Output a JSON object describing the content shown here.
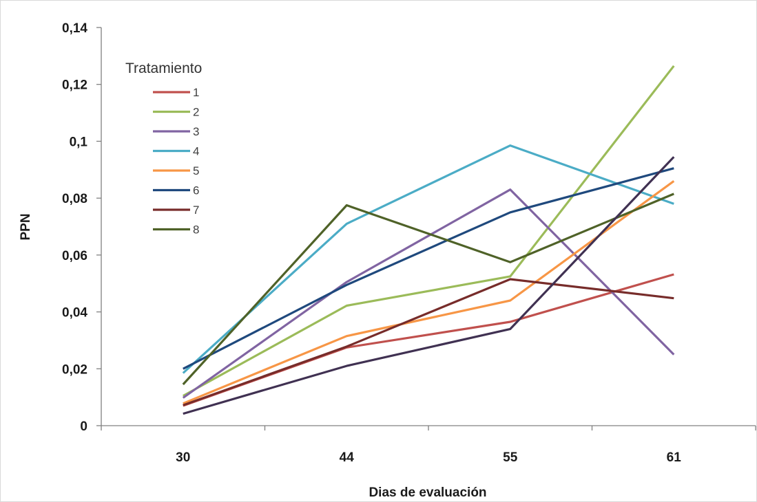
{
  "chart_data": {
    "type": "line",
    "xlabel": "Dias de evaluación",
    "ylabel": "PPN",
    "categories": [
      "30",
      "44",
      "55",
      "61"
    ],
    "ylim": [
      0,
      0.14
    ],
    "yticks": [
      0,
      0.02,
      0.04,
      0.06,
      0.08,
      0.1,
      0.12,
      0.14
    ],
    "ytick_labels": [
      "0",
      "0,02",
      "0,04",
      "0,06",
      "0,08",
      "0,1",
      "0,12",
      "0,14"
    ],
    "grid": false,
    "legend": {
      "title": "Tratamiento",
      "placement": "top-left inside plot"
    },
    "series": [
      {
        "name": "1",
        "color": "#c0504d",
        "values": [
          0.007,
          0.0275,
          0.0365,
          0.0532
        ]
      },
      {
        "name": "2",
        "color": "#9bbb59",
        "values": [
          0.0105,
          0.0422,
          0.0525,
          0.1265
        ]
      },
      {
        "name": "3",
        "color": "#8064a2",
        "values": [
          0.0098,
          0.0505,
          0.083,
          0.025
        ]
      },
      {
        "name": "4",
        "color": "#4bacc6",
        "values": [
          0.0185,
          0.071,
          0.0985,
          0.078
        ]
      },
      {
        "name": "5",
        "color": "#f79646",
        "values": [
          0.0078,
          0.0315,
          0.044,
          0.086
        ]
      },
      {
        "name": "6",
        "color": "#1f497d",
        "values": [
          0.02,
          0.0495,
          0.075,
          0.0905
        ]
      },
      {
        "name": "7",
        "color": "#772c2a",
        "values": [
          0.0072,
          0.0278,
          0.0515,
          0.0448
        ]
      },
      {
        "name": "8",
        "color": "#4f6228",
        "values": [
          0.0145,
          0.0775,
          0.0575,
          0.0815
        ]
      },
      {
        "name": "",
        "color": "#403152",
        "values": [
          0.0042,
          0.021,
          0.034,
          0.0945
        ]
      }
    ]
  }
}
